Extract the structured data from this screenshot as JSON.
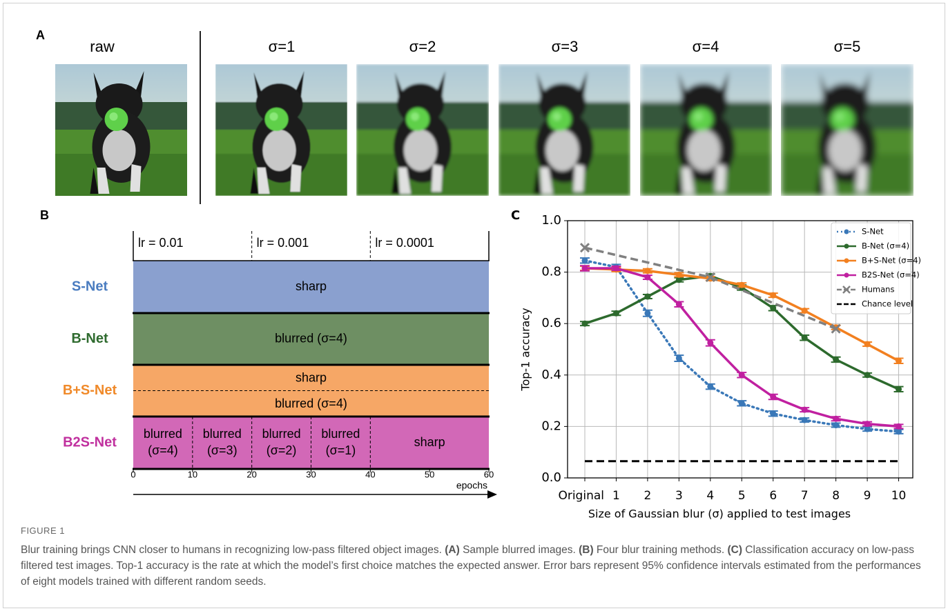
{
  "panel_a": {
    "label": "A",
    "titles": [
      "raw",
      "σ=1",
      "σ=2",
      "σ=3",
      "σ=4",
      "σ=5"
    ]
  },
  "panel_b": {
    "label": "B",
    "learning_rates": [
      "lr = 0.01",
      "lr = 0.001",
      "lr = 0.0001"
    ],
    "rows": [
      {
        "name": "S-Net",
        "label_color": "#4a7cc0",
        "color": "#8aa0cf",
        "segments": [
          [
            "sharp"
          ]
        ]
      },
      {
        "name": "B-Net",
        "label_color": "#2f6b2f",
        "color": "#6e8f63",
        "segments": [
          [
            "blurred (σ=4)"
          ]
        ]
      },
      {
        "name": "B+S-Net",
        "label_color": "#f08a2a",
        "color": "#f6a766",
        "segments": [
          [
            "sharp"
          ],
          [
            "blurred (σ=4)"
          ]
        ]
      },
      {
        "name": "B2S-Net",
        "label_color": "#c0309e",
        "color": "#d268b7",
        "segments": [
          [
            "blurred",
            "(σ=4)"
          ],
          [
            "blurred",
            "(σ=3)"
          ],
          [
            "blurred",
            "(σ=2)"
          ],
          [
            "blurred",
            "(σ=1)"
          ],
          [
            "sharp"
          ]
        ]
      }
    ],
    "xlim": [
      0,
      60
    ],
    "xticks": [
      0,
      10,
      20,
      30,
      40,
      50,
      60
    ],
    "xlabel": "epochs"
  },
  "chart_data": {
    "type": "line",
    "label": "C",
    "xlabel": "Size of Gaussian blur (σ) applied to test images",
    "ylabel": "Top-1 accuracy",
    "x": [
      0,
      1,
      2,
      3,
      4,
      5,
      6,
      7,
      8,
      9,
      10
    ],
    "xlim": [
      -0.55,
      10.45
    ],
    "xticks": [
      {
        "value": 0,
        "label": "Original"
      },
      1,
      2,
      3,
      4,
      5,
      6,
      7,
      8,
      9,
      10
    ],
    "ylim": [
      0,
      1
    ],
    "yticks": [
      {
        "value": 0,
        "label": "0.0"
      },
      0.2,
      0.4,
      0.6,
      0.8,
      {
        "value": 1,
        "label": "1.0"
      }
    ],
    "grid": true,
    "legend": "upper right",
    "series": [
      {
        "name": "S-Net",
        "color": "#3a78b8",
        "style": "dotted",
        "marker": "o",
        "values": [
          0.845,
          0.82,
          0.64,
          0.465,
          0.355,
          0.29,
          0.25,
          0.225,
          0.205,
          0.19,
          0.18
        ],
        "errors": [
          0.01,
          0.01,
          0.012,
          0.012,
          0.01,
          0.01,
          0.01,
          0.008,
          0.008,
          0.008,
          0.008
        ]
      },
      {
        "name": "B-Net (σ=4)",
        "color": "#2d6a2d",
        "style": "solid",
        "marker": "o",
        "values": [
          0.6,
          0.64,
          0.705,
          0.77,
          0.785,
          0.74,
          0.66,
          0.545,
          0.46,
          0.4,
          0.345
        ],
        "errors": [
          0.008,
          0.008,
          0.008,
          0.008,
          0.008,
          0.01,
          0.01,
          0.01,
          0.01,
          0.008,
          0.01
        ]
      },
      {
        "name": "B+S-Net (σ=4)",
        "color": "#f28020",
        "style": "solid",
        "marker": "o",
        "values": [
          0.815,
          0.81,
          0.805,
          0.79,
          0.775,
          0.75,
          0.71,
          0.65,
          0.585,
          0.52,
          0.455
        ],
        "errors": [
          0.008,
          0.008,
          0.008,
          0.008,
          0.008,
          0.008,
          0.008,
          0.008,
          0.008,
          0.008,
          0.01
        ]
      },
      {
        "name": "B2S-Net (σ=4)",
        "color": "#c020a0",
        "style": "solid",
        "marker": "o",
        "values": [
          0.815,
          0.815,
          0.78,
          0.675,
          0.525,
          0.4,
          0.315,
          0.265,
          0.23,
          0.21,
          0.2
        ],
        "errors": [
          0.01,
          0.008,
          0.008,
          0.01,
          0.012,
          0.01,
          0.01,
          0.008,
          0.008,
          0.008,
          0.008
        ]
      },
      {
        "name": "Humans",
        "color": "#808080",
        "style": "dashed",
        "marker": "x",
        "x": [
          0,
          4,
          8
        ],
        "values": [
          0.895,
          0.78,
          0.58
        ]
      },
      {
        "name": "Chance level",
        "color": "#000000",
        "style": "dashed",
        "marker": null,
        "x": [
          0,
          10
        ],
        "values": [
          0.065,
          0.065
        ]
      }
    ]
  },
  "caption": {
    "figure": "FIGURE 1",
    "runs": [
      {
        "text": "Blur training brings CNN closer to humans in recognizing low-pass filtered object images. "
      },
      {
        "text": "(A)",
        "bold": true
      },
      {
        "text": " Sample blurred images. "
      },
      {
        "text": "(B)",
        "bold": true
      },
      {
        "text": " Four blur training methods. "
      },
      {
        "text": "(C)",
        "bold": true
      },
      {
        "text": " Classification accuracy on low-pass filtered test images. Top-1 accuracy is the rate at which the model’s first choice matches the expected answer. Error bars represent 95% confidence intervals estimated from the performances of eight models trained with different random seeds."
      }
    ]
  }
}
